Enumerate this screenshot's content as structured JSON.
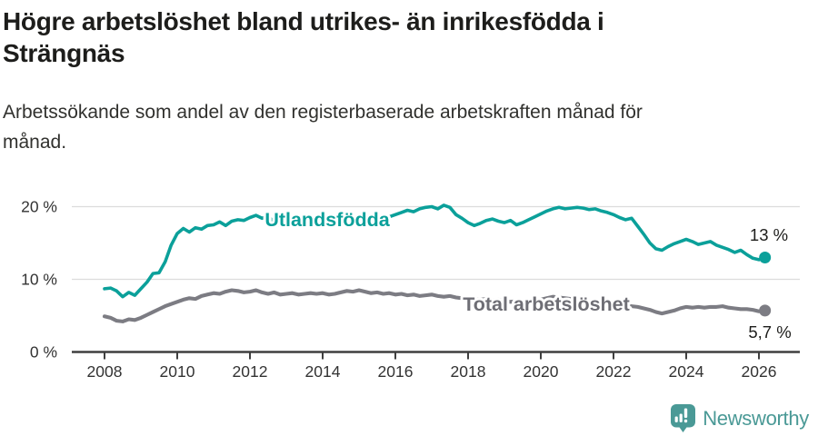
{
  "header": {
    "title": "Högre arbetslöshet bland utrikes- än inrikesfödda i\nSträngnäs",
    "subtitle": "Arbetssökande som andel av den registerbaserade arbetskraften månad för\nmånad."
  },
  "footer": {
    "brand": "Newsworthy"
  },
  "colors": {
    "series_foreign": "#0ba09a",
    "series_total": "#7c7c83",
    "series_total_label": "#6e6e75",
    "grid": "#dcdcdc",
    "axis": "#3f3f3f",
    "tick_label": "#333333",
    "value_label": "#1d1d1b",
    "brand": "#4a9996"
  },
  "chart_data": {
    "type": "line",
    "title": "Högre arbetslöshet bland utrikes- än inrikesfödda i Strängnäs",
    "subtitle": "Arbetssökande som andel av den registerbaserade arbetskraften månad för månad.",
    "x_start": 2008.0,
    "x_step": 0.166667,
    "xlim": [
      2007.1,
      2027.1
    ],
    "ylim": [
      0,
      23
    ],
    "grid": "horizontal",
    "legend_position": "inline",
    "x_ticks": [
      {
        "value": 2008,
        "label": "2008"
      },
      {
        "value": 2010,
        "label": "2010"
      },
      {
        "value": 2012,
        "label": "2012"
      },
      {
        "value": 2014,
        "label": "2014"
      },
      {
        "value": 2016,
        "label": "2016"
      },
      {
        "value": 2018,
        "label": "2018"
      },
      {
        "value": 2020,
        "label": "2020"
      },
      {
        "value": 2022,
        "label": "2022"
      },
      {
        "value": 2024,
        "label": "2024"
      },
      {
        "value": 2026,
        "label": "2026"
      }
    ],
    "y_ticks": [
      {
        "value": 20,
        "label": "20 %"
      },
      {
        "value": 10,
        "label": "10 %"
      },
      {
        "value": 0,
        "label": "0 %"
      }
    ],
    "series": [
      {
        "name": "Utlandsfödda",
        "inline_label": "Utlandsfödda",
        "end_label": "13 %",
        "color_key": "series_foreign",
        "values": [
          8.7,
          8.8,
          8.4,
          7.6,
          8.2,
          7.8,
          8.7,
          9.6,
          10.8,
          10.9,
          12.4,
          14.7,
          16.3,
          17.0,
          16.5,
          17.1,
          16.9,
          17.4,
          17.5,
          17.9,
          17.4,
          18.0,
          18.2,
          18.1,
          18.5,
          18.8,
          18.4,
          18.7,
          17.8,
          17.4,
          17.9,
          18.3,
          18.1,
          18.4,
          18.2,
          18.5,
          18.6,
          18.4,
          18.7,
          18.3,
          17.9,
          17.7,
          18.2,
          18.4,
          18.7,
          18.5,
          18.8,
          18.6,
          18.9,
          19.2,
          19.5,
          19.3,
          19.7,
          19.9,
          20.0,
          19.7,
          20.2,
          19.9,
          18.9,
          18.4,
          17.8,
          17.4,
          17.7,
          18.1,
          18.3,
          18.0,
          17.8,
          18.1,
          17.5,
          17.8,
          18.2,
          18.6,
          19.0,
          19.4,
          19.7,
          19.9,
          19.7,
          19.8,
          19.9,
          19.8,
          19.6,
          19.7,
          19.4,
          19.2,
          18.9,
          18.5,
          18.2,
          18.4,
          17.3,
          16.2,
          15.0,
          14.2,
          14.0,
          14.5,
          14.9,
          15.2,
          15.5,
          15.2,
          14.8,
          15.0,
          15.2,
          14.7,
          14.4,
          14.1,
          13.7,
          14.0,
          13.4,
          12.9,
          12.7,
          13.0
        ]
      },
      {
        "name": "Total arbetslöshet",
        "inline_label": "Total arbetslöshet",
        "end_label": "5,7 %",
        "color_key": "series_total",
        "values": [
          4.9,
          4.7,
          4.3,
          4.2,
          4.5,
          4.4,
          4.7,
          5.1,
          5.5,
          5.9,
          6.3,
          6.6,
          6.9,
          7.2,
          7.4,
          7.3,
          7.7,
          7.9,
          8.1,
          8.0,
          8.3,
          8.5,
          8.4,
          8.2,
          8.3,
          8.5,
          8.2,
          8.0,
          8.2,
          7.9,
          8.0,
          8.1,
          7.9,
          8.0,
          8.1,
          8.0,
          8.1,
          7.9,
          8.0,
          8.2,
          8.4,
          8.3,
          8.5,
          8.3,
          8.1,
          8.2,
          8.0,
          8.1,
          7.9,
          8.0,
          7.8,
          7.9,
          7.7,
          7.8,
          7.9,
          7.7,
          7.6,
          7.7,
          7.5,
          7.4,
          7.5,
          7.3,
          7.2,
          7.3,
          7.1,
          7.2,
          7.0,
          6.9,
          7.0,
          6.8,
          6.9,
          7.0,
          7.2,
          7.4,
          7.6,
          7.5,
          7.4,
          7.3,
          7.2,
          7.1,
          7.0,
          6.9,
          6.8,
          6.7,
          6.6,
          6.5,
          6.4,
          6.3,
          6.2,
          6.0,
          5.8,
          5.5,
          5.3,
          5.5,
          5.7,
          6.0,
          6.2,
          6.1,
          6.2,
          6.1,
          6.2,
          6.2,
          6.3,
          6.1,
          6.0,
          5.9,
          5.9,
          5.8,
          5.6,
          5.7
        ]
      }
    ]
  }
}
